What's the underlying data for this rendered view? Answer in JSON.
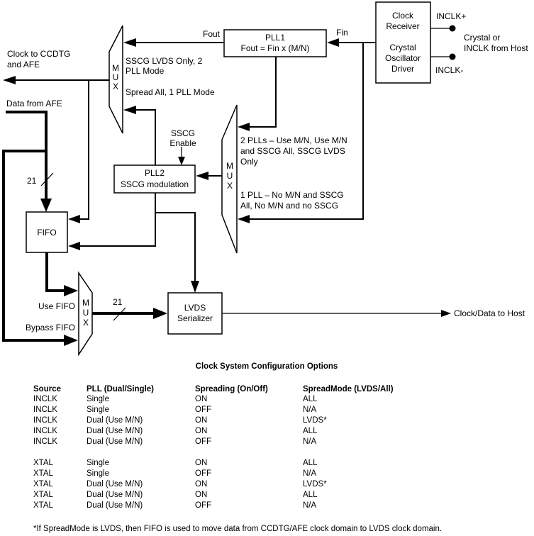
{
  "diagram": {
    "labels": {
      "fout": "Fout",
      "fin": "Fin",
      "clock_to_ccdtg_1": "Clock to CCDTG",
      "clock_to_ccdtg_2": "and AFE",
      "data_from_afe": "Data from AFE",
      "mux1_in1_1": "SSCG LVDS Only, 2",
      "mux1_in1_2": "PLL Mode",
      "mux1_in2": "Spread All, 1 PLL Mode",
      "sscg_enable_1": "SSCG",
      "sscg_enable_2": "Enable",
      "bus_width_in": "21",
      "bus_width_out": "21",
      "mux2_in1_1": "2 PLLs – Use M/N, Use M/N",
      "mux2_in1_2": "and SSCG All, SSCG LVDS",
      "mux2_in1_3": "Only",
      "mux2_in2_1": "1 PLL – No M/N and SSCG",
      "mux2_in2_2": "All,  No M/N and no SSCG",
      "use_fifo": "Use FIFO",
      "bypass_fifo": "Bypass FIFO",
      "clock_data_to_host": "Clock/Data to Host",
      "inclk_plus": "INCLK+",
      "inclk_minus": "INCLK-",
      "crystal_1": "Crystal or",
      "crystal_2": "INCLK from Host"
    },
    "blocks": {
      "pll1_1": "PLL1",
      "pll1_2": "Fout = Fin x (M/N)",
      "pll2_1": "PLL2",
      "pll2_2": "SSCG modulation",
      "fifo": "FIFO",
      "lvds_1": "LVDS",
      "lvds_2": "Serializer",
      "clk_1": "Clock",
      "clk_2": "Receiver",
      "clk_3": "Crystal",
      "clk_4": "Oscillator",
      "clk_5": "Driver",
      "mux_m": "M",
      "mux_u": "U",
      "mux_x": "X"
    }
  },
  "table": {
    "title": "Clock System Configuration Options",
    "headers": [
      "Source",
      "PLL (Dual/Single)",
      "Spreading (On/Off)",
      "SpreadMode (LVDS/All)"
    ],
    "rows": [
      [
        "INCLK",
        "Single",
        "ON",
        "ALL"
      ],
      [
        "INCLK",
        "Single",
        "OFF",
        "N/A"
      ],
      [
        "INCLK",
        "Dual (Use M/N)",
        "ON",
        "LVDS*"
      ],
      [
        "INCLK",
        "Dual (Use M/N)",
        "ON",
        "ALL"
      ],
      [
        "INCLK",
        "Dual (Use M/N)",
        "OFF",
        "N/A"
      ],
      [
        "XTAL",
        "Single",
        "ON",
        "ALL"
      ],
      [
        "XTAL",
        "Single",
        "OFF",
        "N/A"
      ],
      [
        "XTAL",
        "Dual (Use M/N)",
        "ON",
        "LVDS*"
      ],
      [
        "XTAL",
        "Dual (Use M/N)",
        "ON",
        "ALL"
      ],
      [
        "XTAL",
        "Dual (Use M/N)",
        "OFF",
        "N/A"
      ]
    ],
    "footnote": "*If SpreadMode is LVDS, then FIFO is used to move data from CCDTG/AFE clock domain to LVDS clock domain."
  }
}
